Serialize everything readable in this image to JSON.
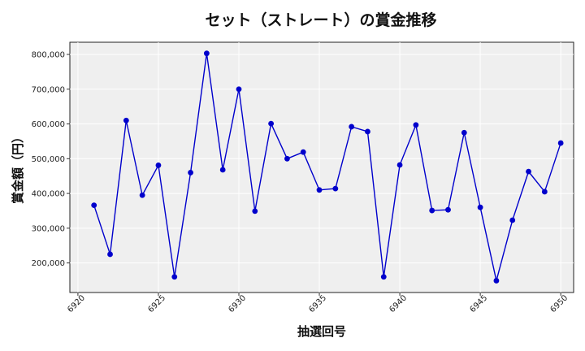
{
  "chart_data": {
    "type": "line",
    "title": "セット（ストレート）の賞金推移",
    "xlabel": "抽選回号",
    "ylabel": "賞金額（円）",
    "xlim": [
      6919.5,
      6950.8
    ],
    "ylim": [
      115000,
      835000
    ],
    "grid": true,
    "xticks": [
      6920,
      6925,
      6930,
      6935,
      6940,
      6945,
      6950
    ],
    "xtick_labels": [
      "6920",
      "6925",
      "6930",
      "6935",
      "6940",
      "6945",
      "6950"
    ],
    "yticks": [
      200000,
      300000,
      400000,
      500000,
      600000,
      700000,
      800000
    ],
    "ytick_labels": [
      "200,000",
      "300,000",
      "400,000",
      "500,000",
      "600,000",
      "700,000",
      "800,000"
    ],
    "series": [
      {
        "color": "#0000cc",
        "x": [
          6921,
          6922,
          6923,
          6924,
          6925,
          6926,
          6927,
          6928,
          6929,
          6930,
          6931,
          6932,
          6933,
          6934,
          6935,
          6936,
          6937,
          6938,
          6939,
          6940,
          6941,
          6942,
          6943,
          6944,
          6945,
          6946,
          6947,
          6948,
          6949,
          6950
        ],
        "values": [
          366000,
          225000,
          610000,
          395000,
          481000,
          160000,
          460000,
          803000,
          468000,
          700000,
          349000,
          601000,
          500000,
          519000,
          410000,
          414000,
          592000,
          578000,
          160000,
          482000,
          597000,
          351000,
          353000,
          575000,
          360000,
          149000,
          323000,
          463000,
          405000,
          545000
        ]
      }
    ]
  }
}
